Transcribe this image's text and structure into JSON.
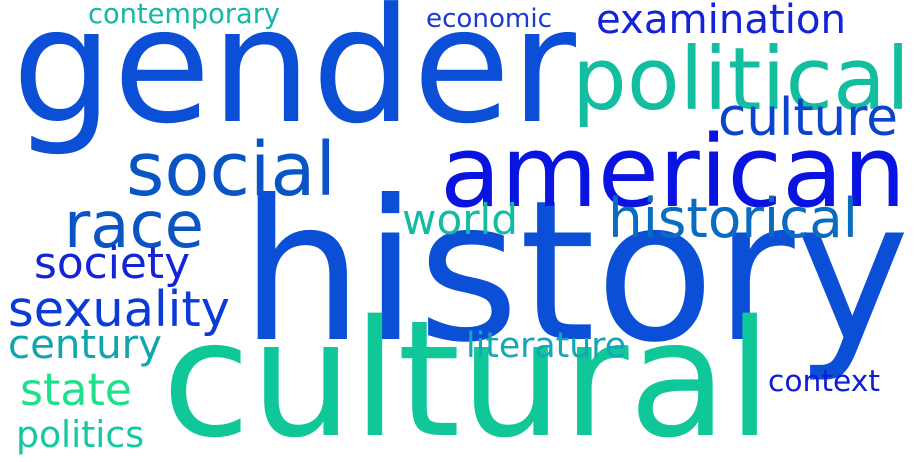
{
  "words": [
    {
      "id": "gender",
      "text": "gender",
      "color": "#0a4fd6"
    },
    {
      "id": "history",
      "text": "history",
      "color": "#0a4fd6"
    },
    {
      "id": "american",
      "text": "american",
      "color": "#0a14e0"
    },
    {
      "id": "cultural",
      "text": "cultural",
      "color": "#10c79a"
    },
    {
      "id": "political",
      "text": "political",
      "color": "#13bd9f"
    },
    {
      "id": "social",
      "text": "social",
      "color": "#0a55c4"
    },
    {
      "id": "race",
      "text": "race",
      "color": "#0a55c4"
    },
    {
      "id": "examination",
      "text": "examination",
      "color": "#1422d8"
    },
    {
      "id": "culture",
      "text": "culture",
      "color": "#0a44cc"
    },
    {
      "id": "historical",
      "text": "historical",
      "color": "#0a6cc0"
    },
    {
      "id": "sexuality",
      "text": "sexuality",
      "color": "#0a3ad8"
    },
    {
      "id": "world",
      "text": "world",
      "color": "#13bba1"
    },
    {
      "id": "society",
      "text": "society",
      "color": "#1422d8"
    },
    {
      "id": "century",
      "text": "century",
      "color": "#10a6ab"
    },
    {
      "id": "contemporary",
      "text": "contemporary",
      "color": "#14b8a6"
    },
    {
      "id": "economic",
      "text": "economic",
      "color": "#1a3bd2"
    },
    {
      "id": "literature",
      "text": "literature",
      "color": "#14a6b6"
    },
    {
      "id": "state",
      "text": "state",
      "color": "#1fe08a"
    },
    {
      "id": "context",
      "text": "context",
      "color": "#0e1ed6"
    },
    {
      "id": "politics",
      "text": "politics",
      "color": "#12c9a2"
    }
  ]
}
